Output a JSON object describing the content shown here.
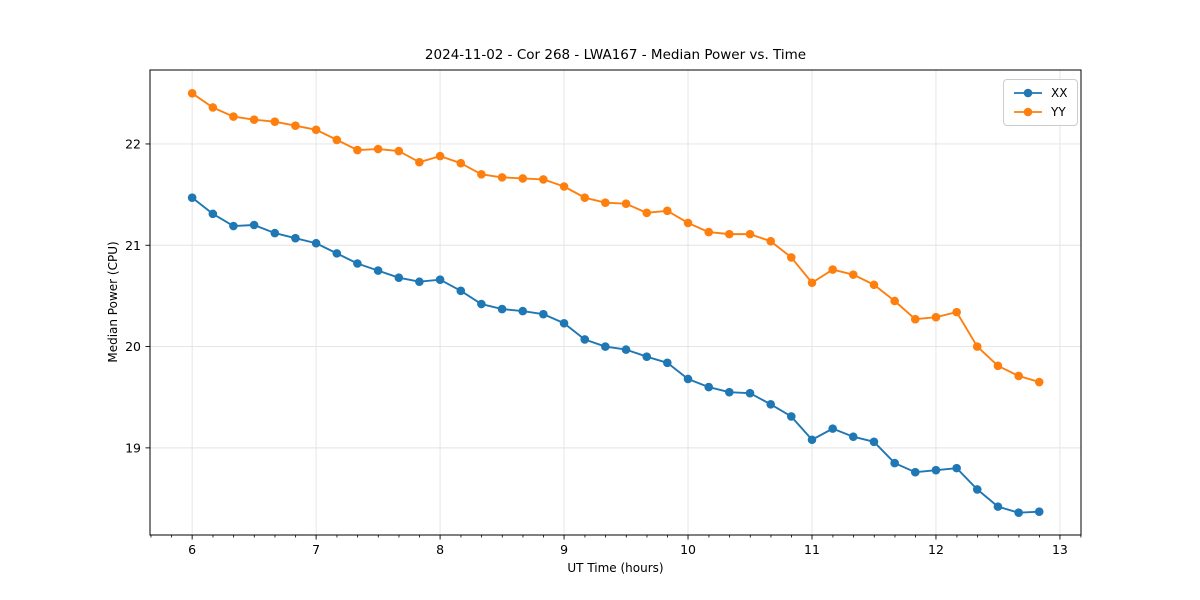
{
  "figure": {
    "title": "2024-11-02 - Cor 268 - LWA167 - Median Power vs. Time",
    "xlabel": "UT Time (hours)",
    "ylabel": "Median Power (CPU)"
  },
  "legend": {
    "items": [
      {
        "label": "XX",
        "color": "#1f77b4"
      },
      {
        "label": "YY",
        "color": "#ff7f0e"
      }
    ]
  },
  "chart_data": {
    "type": "line",
    "title": "2024-11-02 - Cor 268 - LWA167 - Median Power vs. Time",
    "xlabel": "UT Time (hours)",
    "ylabel": "Median Power (CPU)",
    "grid": true,
    "legend_position": "upper right",
    "xlim": [
      5.66,
      13.17
    ],
    "ylim": [
      18.14,
      22.73
    ],
    "xticks": [
      6,
      7,
      8,
      9,
      10,
      11,
      12,
      13
    ],
    "yticks": [
      19,
      20,
      21,
      22
    ],
    "minor_xtick_step": 0.1667,
    "x": [
      6.0,
      6.167,
      6.333,
      6.5,
      6.667,
      6.833,
      7.0,
      7.167,
      7.333,
      7.5,
      7.667,
      7.833,
      8.0,
      8.167,
      8.333,
      8.5,
      8.667,
      8.833,
      9.0,
      9.167,
      9.333,
      9.5,
      9.667,
      9.833,
      10.0,
      10.167,
      10.333,
      10.5,
      10.667,
      10.833,
      11.0,
      11.167,
      11.333,
      11.5,
      11.667,
      11.833,
      12.0,
      12.167,
      12.333,
      12.5,
      12.667,
      12.833
    ],
    "series": [
      {
        "name": "XX",
        "color": "#1f77b4",
        "marker": "circle",
        "values": [
          21.47,
          21.31,
          21.19,
          21.2,
          21.12,
          21.07,
          21.02,
          20.92,
          20.82,
          20.75,
          20.68,
          20.64,
          20.66,
          20.55,
          20.42,
          20.37,
          20.35,
          20.32,
          20.23,
          20.07,
          20.0,
          19.97,
          19.9,
          19.84,
          19.68,
          19.6,
          19.55,
          19.54,
          19.43,
          19.31,
          19.08,
          19.19,
          19.11,
          19.06,
          18.85,
          18.76,
          18.78,
          18.8,
          18.59,
          18.42,
          18.36,
          18.37
        ]
      },
      {
        "name": "YY",
        "color": "#ff7f0e",
        "marker": "circle",
        "values": [
          22.5,
          22.36,
          22.27,
          22.24,
          22.22,
          22.18,
          22.14,
          22.04,
          21.94,
          21.95,
          21.93,
          21.82,
          21.88,
          21.81,
          21.7,
          21.67,
          21.66,
          21.65,
          21.58,
          21.47,
          21.42,
          21.41,
          21.32,
          21.34,
          21.22,
          21.13,
          21.11,
          21.11,
          21.04,
          20.88,
          20.63,
          20.76,
          20.71,
          20.61,
          20.45,
          20.27,
          20.29,
          20.34,
          20.0,
          19.81,
          19.71,
          19.65
        ]
      }
    ]
  }
}
